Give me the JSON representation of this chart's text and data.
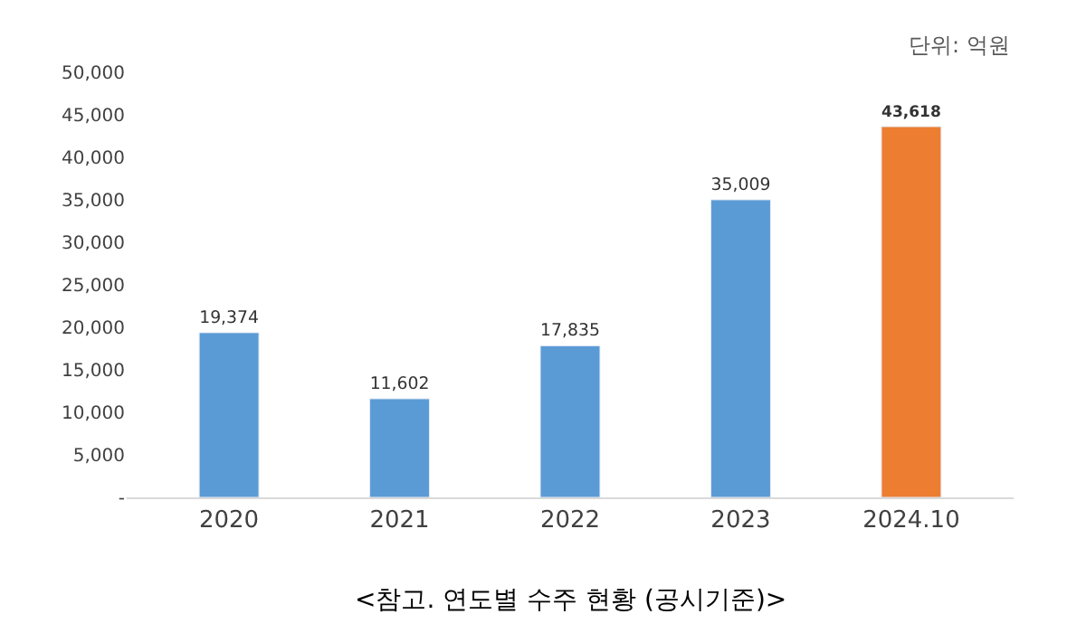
{
  "chart_data": {
    "type": "bar",
    "categories": [
      "2020",
      "2021",
      "2022",
      "2023",
      "2024.10"
    ],
    "values": [
      19374,
      11602,
      17835,
      35009,
      43618
    ],
    "colors": [
      "#5b9bd5",
      "#5b9bd5",
      "#5b9bd5",
      "#5b9bd5",
      "#ed7d31"
    ],
    "value_labels": [
      "19,374",
      "11,602",
      "17,835",
      "35,009",
      "43,618"
    ],
    "ylim": [
      0,
      50000
    ],
    "yticks": [
      {
        "value": 0,
        "label": "-"
      },
      {
        "value": 5000,
        "label": "5,000"
      },
      {
        "value": 10000,
        "label": "10,000"
      },
      {
        "value": 15000,
        "label": "15,000"
      },
      {
        "value": 20000,
        "label": "20,000"
      },
      {
        "value": 25000,
        "label": "25,000"
      },
      {
        "value": 30000,
        "label": "30,000"
      },
      {
        "value": 35000,
        "label": "35,000"
      },
      {
        "value": 40000,
        "label": "40,000"
      },
      {
        "value": 45000,
        "label": "45,000"
      },
      {
        "value": 50000,
        "label": "50,000"
      }
    ],
    "legend": false,
    "annotations": [
      "단위: 억원",
      "<참고. 연도별 수주 현황 (공시기준)>"
    ]
  }
}
